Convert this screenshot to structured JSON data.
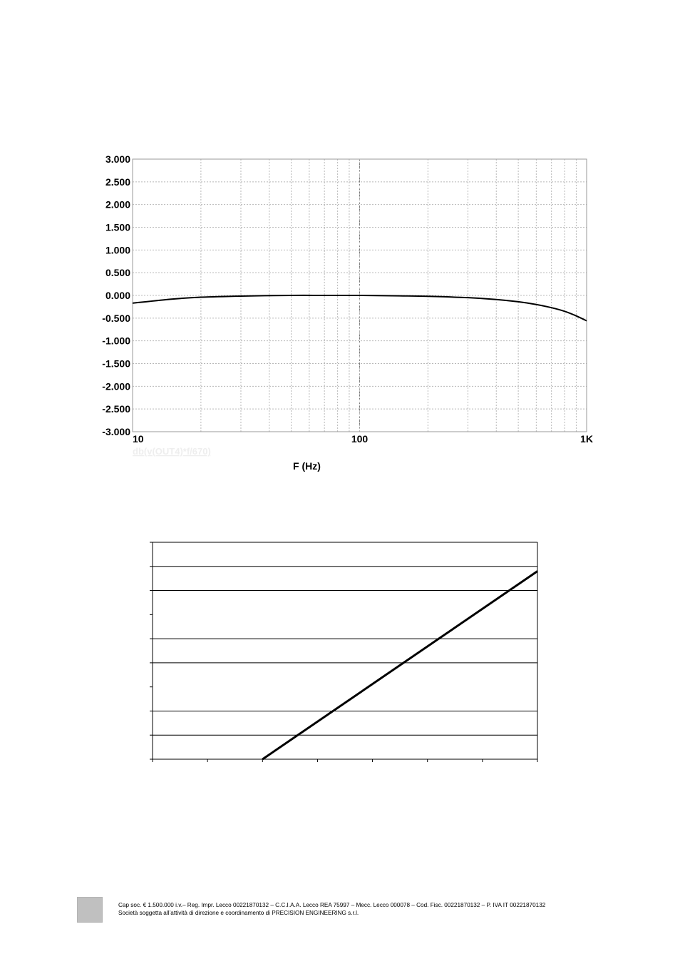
{
  "chart_data": [
    {
      "type": "line",
      "x_scale": "log",
      "xlim": [
        10,
        1000
      ],
      "ylim": [
        -3.0,
        3.0
      ],
      "xlabel": "F (Hz)",
      "ylabel": "",
      "title": "",
      "grid": true,
      "y_ticks": [
        "3.000",
        "2.500",
        "2.000",
        "1.500",
        "1.000",
        "0.500",
        "0.000",
        "-0.500",
        "-1.000",
        "-1.500",
        "-2.000",
        "-2.500",
        "-3.000"
      ],
      "x_ticks": [
        "10",
        "100",
        "1K"
      ],
      "legend": "db(v(OUT4)*f/670)",
      "series": [
        {
          "name": "db(v(OUT4)*f/670)",
          "color": "#000000",
          "x": [
            10,
            15,
            20,
            30,
            50,
            70,
            100,
            150,
            200,
            300,
            400,
            500,
            600,
            700,
            800,
            900,
            1000
          ],
          "y": [
            -0.17,
            -0.08,
            -0.04,
            -0.015,
            0.0,
            0.0,
            0.0,
            -0.01,
            -0.02,
            -0.05,
            -0.09,
            -0.14,
            -0.2,
            -0.27,
            -0.35,
            -0.45,
            -0.56
          ]
        }
      ]
    },
    {
      "type": "line",
      "title": "",
      "xlabel": "",
      "ylabel": "",
      "grid": true,
      "xlim": [
        0,
        7
      ],
      "ylim": [
        0,
        9
      ],
      "x_ticks": [
        0,
        1,
        2,
        3,
        4,
        5,
        6,
        7
      ],
      "y_ticks": [
        0,
        1,
        2,
        3,
        4,
        5,
        6,
        7,
        8,
        9
      ],
      "gridlines_y": [
        1,
        2,
        4,
        5,
        7,
        8,
        9
      ],
      "series": [
        {
          "color": "#000000",
          "x": [
            2.0,
            7.0
          ],
          "y": [
            0.0,
            7.8
          ]
        }
      ]
    }
  ],
  "footer": {
    "line1": "Cap soc. € 1.500.000 i.v.– Reg. Impr. Lecco 00221870132 – C.C.I.A.A. Lecco REA 75997 – Mecc. Lecco 000078 – Cod. Fisc. 00221870132 – P. IVA  IT 00221870132",
    "line2": "Società soggetta all’attività di direzione e coordinamento di PRECISION ENGINEERING s.r.l."
  }
}
